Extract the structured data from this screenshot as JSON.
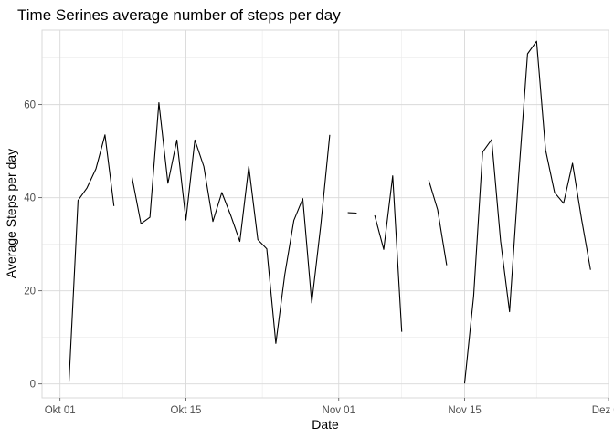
{
  "chart_data": {
    "type": "line",
    "title": "Time Serines average number of steps per day",
    "xlabel": "Date",
    "ylabel": "Average Steps per day",
    "xlim": [
      "2012-09-29",
      "2012-12-01"
    ],
    "ylim": [
      -3,
      76
    ],
    "x_ticks": [
      {
        "date": "2012-10-01",
        "label": "Okt 01"
      },
      {
        "date": "2012-10-15",
        "label": "Okt 15"
      },
      {
        "date": "2012-11-01",
        "label": "Nov 01"
      },
      {
        "date": "2012-11-15",
        "label": "Nov 15"
      },
      {
        "date": "2012-12-01",
        "label": "Dez 01"
      }
    ],
    "y_ticks": [
      0,
      20,
      40,
      60
    ],
    "grid": true,
    "series": [
      {
        "color": "#000000",
        "points": [
          {
            "x": "2012-10-01",
            "y": null
          },
          {
            "x": "2012-10-02",
            "y": 0.4
          },
          {
            "x": "2012-10-03",
            "y": 39.4
          },
          {
            "x": "2012-10-04",
            "y": 42.1
          },
          {
            "x": "2012-10-05",
            "y": 46.2
          },
          {
            "x": "2012-10-06",
            "y": 53.5
          },
          {
            "x": "2012-10-07",
            "y": 38.2
          },
          {
            "x": "2012-10-08",
            "y": null
          },
          {
            "x": "2012-10-09",
            "y": 44.5
          },
          {
            "x": "2012-10-10",
            "y": 34.4
          },
          {
            "x": "2012-10-11",
            "y": 35.8
          },
          {
            "x": "2012-10-12",
            "y": 60.4
          },
          {
            "x": "2012-10-13",
            "y": 43.1
          },
          {
            "x": "2012-10-14",
            "y": 52.4
          },
          {
            "x": "2012-10-15",
            "y": 35.2
          },
          {
            "x": "2012-10-16",
            "y": 52.4
          },
          {
            "x": "2012-10-17",
            "y": 46.7
          },
          {
            "x": "2012-10-18",
            "y": 34.9
          },
          {
            "x": "2012-10-19",
            "y": 41.1
          },
          {
            "x": "2012-10-20",
            "y": 36.1
          },
          {
            "x": "2012-10-21",
            "y": 30.6
          },
          {
            "x": "2012-10-22",
            "y": 46.7
          },
          {
            "x": "2012-10-23",
            "y": 31.0
          },
          {
            "x": "2012-10-24",
            "y": 29.0
          },
          {
            "x": "2012-10-25",
            "y": 8.7
          },
          {
            "x": "2012-10-26",
            "y": 23.5
          },
          {
            "x": "2012-10-27",
            "y": 35.1
          },
          {
            "x": "2012-10-28",
            "y": 39.8
          },
          {
            "x": "2012-10-29",
            "y": 17.4
          },
          {
            "x": "2012-10-30",
            "y": 34.1
          },
          {
            "x": "2012-10-31",
            "y": 53.5
          },
          {
            "x": "2012-11-01",
            "y": null
          },
          {
            "x": "2012-11-02",
            "y": 36.8
          },
          {
            "x": "2012-11-03",
            "y": 36.7
          },
          {
            "x": "2012-11-04",
            "y": null
          },
          {
            "x": "2012-11-05",
            "y": 36.2
          },
          {
            "x": "2012-11-06",
            "y": 28.9
          },
          {
            "x": "2012-11-07",
            "y": 44.7
          },
          {
            "x": "2012-11-08",
            "y": 11.2
          },
          {
            "x": "2012-11-09",
            "y": null
          },
          {
            "x": "2012-11-10",
            "y": null
          },
          {
            "x": "2012-11-11",
            "y": 43.8
          },
          {
            "x": "2012-11-12",
            "y": 37.4
          },
          {
            "x": "2012-11-13",
            "y": 25.5
          },
          {
            "x": "2012-11-14",
            "y": null
          },
          {
            "x": "2012-11-15",
            "y": 0.1
          },
          {
            "x": "2012-11-16",
            "y": 18.9
          },
          {
            "x": "2012-11-17",
            "y": 49.8
          },
          {
            "x": "2012-11-18",
            "y": 52.5
          },
          {
            "x": "2012-11-19",
            "y": 30.7
          },
          {
            "x": "2012-11-20",
            "y": 15.5
          },
          {
            "x": "2012-11-21",
            "y": 44.4
          },
          {
            "x": "2012-11-22",
            "y": 70.9
          },
          {
            "x": "2012-11-23",
            "y": 73.6
          },
          {
            "x": "2012-11-24",
            "y": 50.3
          },
          {
            "x": "2012-11-25",
            "y": 41.1
          },
          {
            "x": "2012-11-26",
            "y": 38.8
          },
          {
            "x": "2012-11-27",
            "y": 47.4
          },
          {
            "x": "2012-11-28",
            "y": 35.4
          },
          {
            "x": "2012-11-29",
            "y": 24.5
          },
          {
            "x": "2012-11-30",
            "y": null
          }
        ]
      }
    ]
  }
}
